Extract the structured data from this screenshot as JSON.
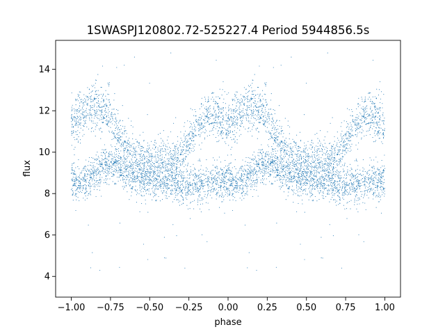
{
  "chart_data": {
    "type": "scatter",
    "title": "1SWASPJ120802.72-525227.4 Period 5944856.5s",
    "xlabel": "phase",
    "ylabel": "flux",
    "xlim": [
      -1.1,
      1.1
    ],
    "ylim": [
      3.0,
      15.4
    ],
    "xticks": [
      -1.0,
      -0.75,
      -0.5,
      -0.25,
      0.0,
      0.25,
      0.5,
      0.75,
      1.0
    ],
    "xtick_labels": [
      "−1.00",
      "−0.75",
      "−0.50",
      "−0.25",
      "0.00",
      "0.25",
      "0.50",
      "0.75",
      "1.00"
    ],
    "yticks": [
      4,
      6,
      8,
      10,
      12,
      14
    ],
    "ytick_labels": [
      "4",
      "6",
      "8",
      "10",
      "12",
      "14"
    ],
    "grid": false,
    "legend": "none",
    "color": "#1f77b4",
    "series": [
      {
        "name": "",
        "profile": {
          "phase": [
            0.0,
            0.05,
            0.1,
            0.15,
            0.2,
            0.25,
            0.3,
            0.35,
            0.4,
            0.45,
            0.5,
            0.55,
            0.6,
            0.65,
            0.7,
            0.75,
            0.8,
            0.85,
            0.9,
            0.95,
            1.0
          ],
          "flux_low_band": [
            8.6,
            8.5,
            8.7,
            9.0,
            9.3,
            9.5,
            9.3,
            9.1,
            8.8,
            8.6,
            8.6,
            8.5,
            8.6,
            8.7,
            8.4,
            8.3,
            8.4,
            8.5,
            8.6,
            8.6,
            8.6
          ],
          "flux_high_band": [
            11.3,
            11.8,
            12.1,
            12.2,
            12.1,
            11.8,
            10.9,
            10.2,
            9.9,
            9.6,
            9.5,
            9.5,
            9.6,
            9.7,
            9.8,
            10.3,
            11.0,
            11.6,
            11.9,
            11.7,
            11.3
          ]
        },
        "outlier_range": [
          3.6,
          14.9
        ]
      }
    ]
  }
}
